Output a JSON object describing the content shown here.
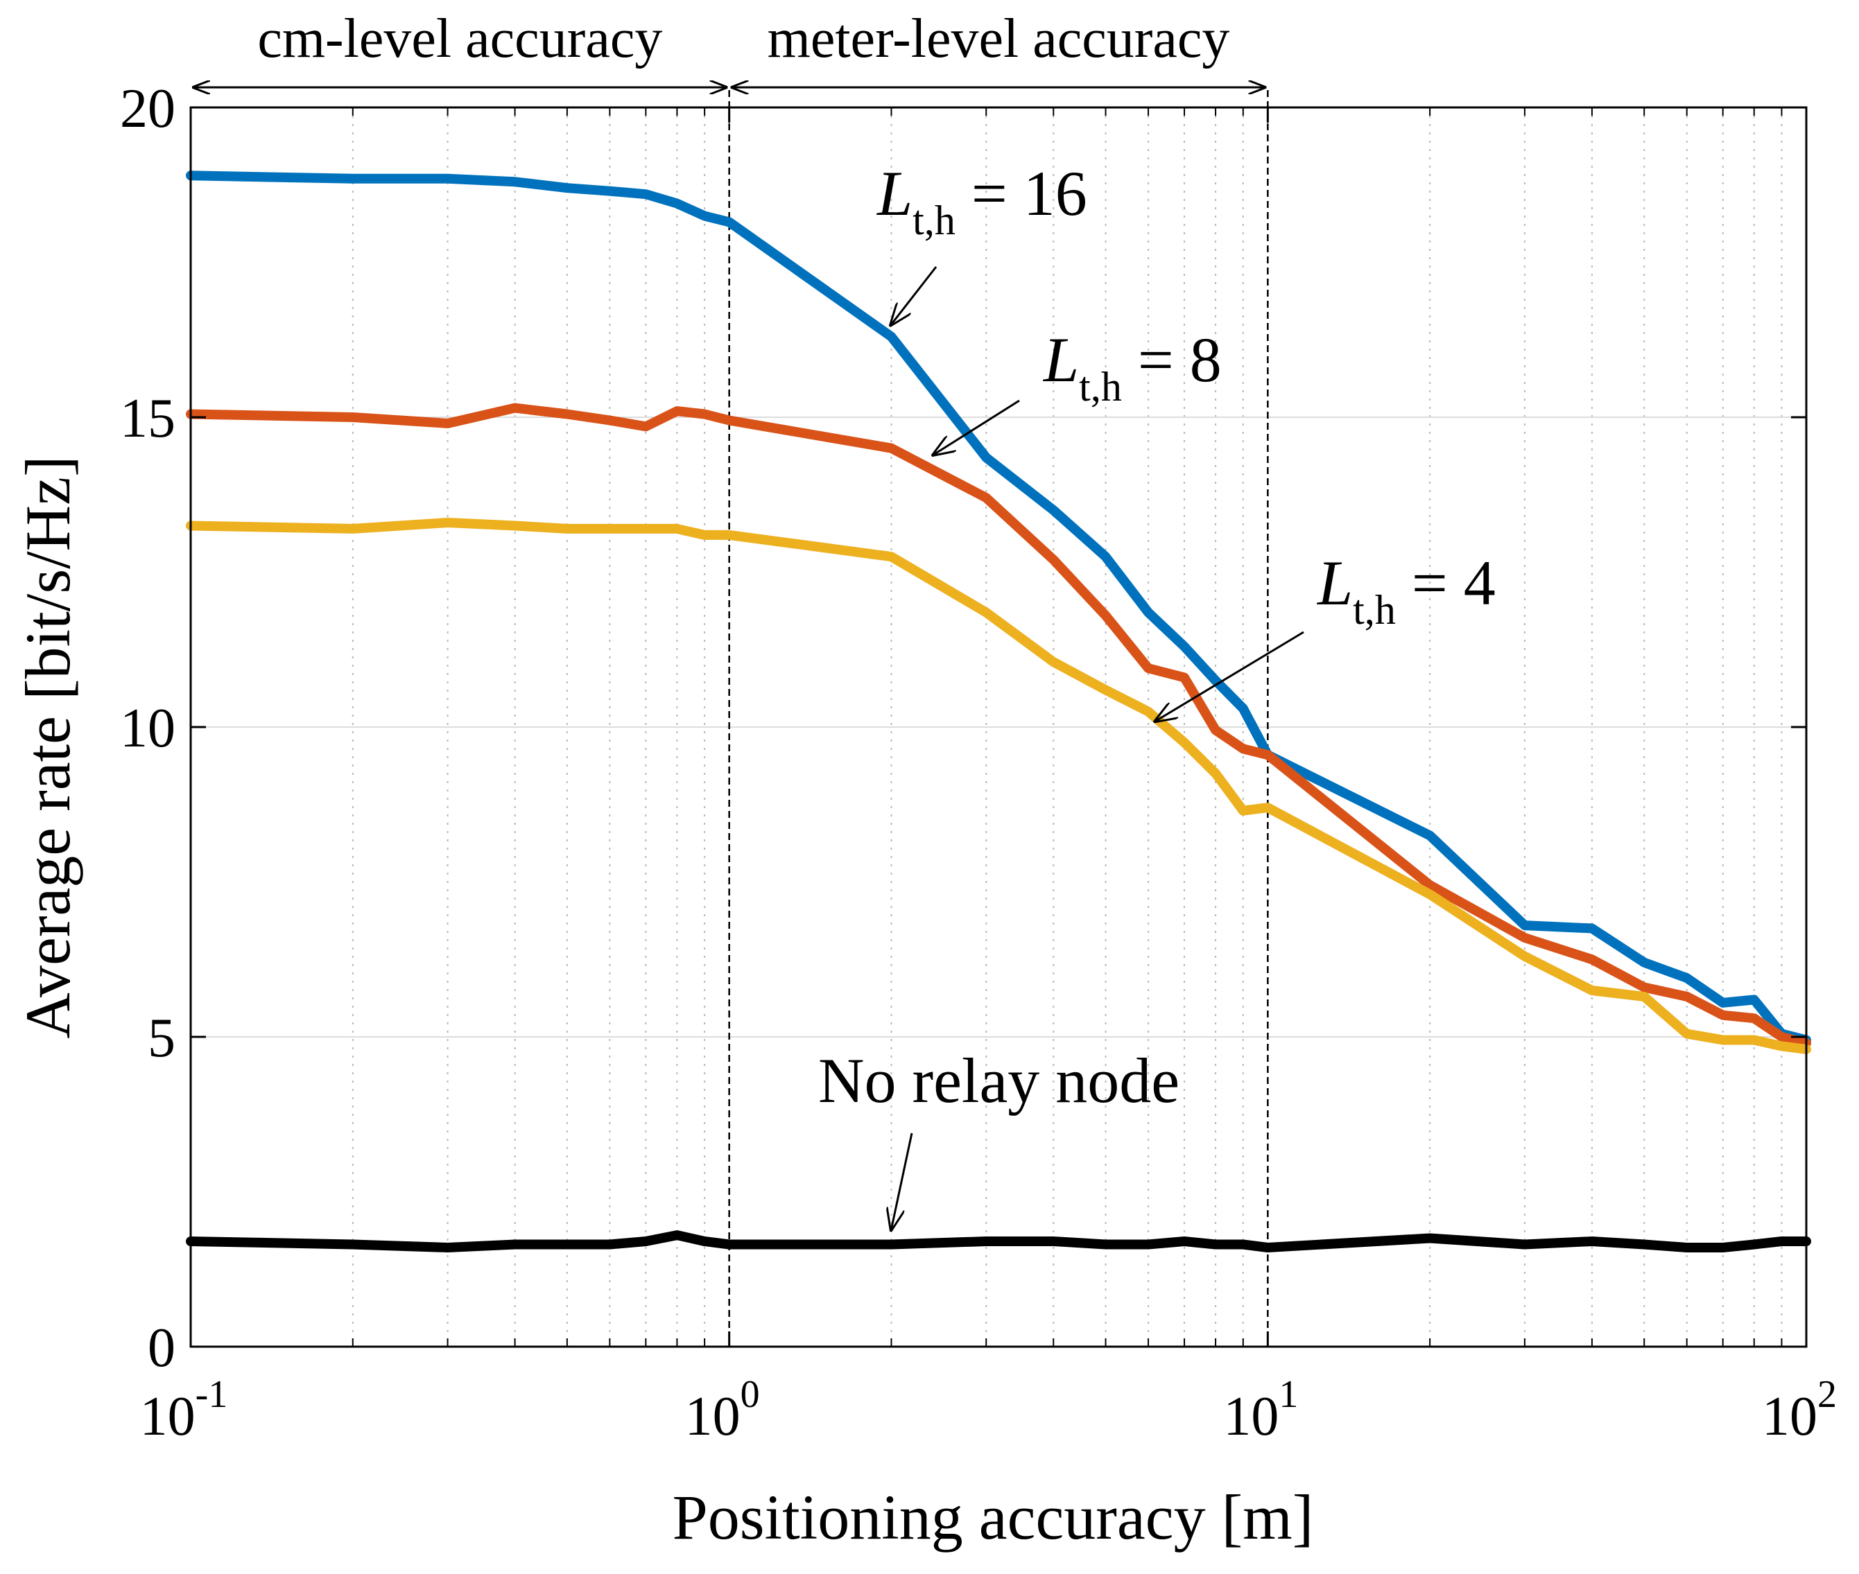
{
  "chart_data": {
    "type": "line",
    "title": "",
    "xlabel": "Positioning accuracy [m]",
    "ylabel": "Average rate [bit/s/Hz]",
    "xscale": "log",
    "xlim": [
      0.1,
      100
    ],
    "ylim": [
      0,
      20
    ],
    "grid": true,
    "xticks": [
      {
        "base": "10",
        "exp": "-1"
      },
      {
        "base": "10",
        "exp": "0"
      },
      {
        "base": "10",
        "exp": "1"
      },
      {
        "base": "10",
        "exp": "2"
      }
    ],
    "yticks": [
      "0",
      "5",
      "10",
      "15",
      "20"
    ],
    "regions": [
      {
        "label": "cm-level accuracy",
        "from": 0.1,
        "to": 1
      },
      {
        "label": "meter-level accuracy",
        "from": 1,
        "to": 10
      }
    ],
    "vlines": [
      1,
      10
    ],
    "series": [
      {
        "color": "#0072BD",
        "x": [
          0.1,
          0.2,
          0.3,
          0.4,
          0.5,
          0.6,
          0.7,
          0.8,
          0.9,
          1,
          2,
          3,
          4,
          5,
          6,
          7,
          8,
          9,
          10,
          20,
          30,
          40,
          50,
          60,
          70,
          80,
          90,
          100
        ],
        "y": [
          18.9,
          18.85,
          18.85,
          18.8,
          18.7,
          18.65,
          18.6,
          18.45,
          18.25,
          18.15,
          16.3,
          14.35,
          13.5,
          12.75,
          11.85,
          11.3,
          10.75,
          10.3,
          9.55,
          8.25,
          6.8,
          6.75,
          6.2,
          5.95,
          5.55,
          5.6,
          5.05,
          4.95
        ]
      },
      {
        "color": "#D95319",
        "x": [
          0.1,
          0.2,
          0.3,
          0.4,
          0.5,
          0.6,
          0.7,
          0.8,
          0.9,
          1,
          2,
          3,
          4,
          5,
          6,
          7,
          8,
          9,
          10,
          20,
          30,
          40,
          50,
          60,
          70,
          80,
          90,
          100
        ],
        "y": [
          15.05,
          15.0,
          14.9,
          15.15,
          15.05,
          14.95,
          14.85,
          15.1,
          15.05,
          14.95,
          14.5,
          13.7,
          12.7,
          11.8,
          10.95,
          10.8,
          9.95,
          9.65,
          9.55,
          7.45,
          6.6,
          6.25,
          5.8,
          5.65,
          5.35,
          5.3,
          5.0,
          4.9
        ]
      },
      {
        "color": "#EDB120",
        "x": [
          0.1,
          0.2,
          0.3,
          0.4,
          0.5,
          0.6,
          0.7,
          0.8,
          0.9,
          1,
          2,
          3,
          4,
          5,
          6,
          7,
          8,
          9,
          10,
          20,
          30,
          40,
          50,
          60,
          70,
          80,
          90,
          100
        ],
        "y": [
          13.25,
          13.2,
          13.3,
          13.25,
          13.2,
          13.2,
          13.2,
          13.2,
          13.1,
          13.1,
          12.75,
          11.85,
          11.05,
          10.6,
          10.25,
          9.75,
          9.25,
          8.65,
          8.7,
          7.3,
          6.3,
          5.75,
          5.65,
          5.05,
          4.95,
          4.95,
          4.85,
          4.8
        ]
      },
      {
        "color": "#000000",
        "x": [
          0.1,
          0.2,
          0.3,
          0.4,
          0.5,
          0.6,
          0.7,
          0.8,
          0.9,
          1,
          2,
          3,
          4,
          5,
          6,
          7,
          8,
          9,
          10,
          20,
          30,
          40,
          50,
          60,
          70,
          80,
          90,
          100
        ],
        "y": [
          1.7,
          1.65,
          1.6,
          1.65,
          1.65,
          1.65,
          1.7,
          1.8,
          1.7,
          1.65,
          1.65,
          1.7,
          1.7,
          1.65,
          1.65,
          1.7,
          1.65,
          1.65,
          1.6,
          1.75,
          1.65,
          1.7,
          1.65,
          1.6,
          1.6,
          1.65,
          1.7,
          1.7
        ]
      }
    ],
    "annotations": [
      {
        "main": "L",
        "sub": "t,h",
        "rest": " = 16",
        "arrow_to": [
          2.0,
          16.5
        ]
      },
      {
        "main": "L",
        "sub": "t,h",
        "rest": " = 8",
        "arrow_to": [
          2.4,
          14.4
        ]
      },
      {
        "main": "L",
        "sub": "t,h",
        "rest": " = 4",
        "arrow_to": [
          6.2,
          10.1
        ]
      },
      {
        "main": "No relay node",
        "sub": "",
        "rest": "",
        "arrow_to": [
          2.0,
          1.9
        ]
      }
    ]
  }
}
